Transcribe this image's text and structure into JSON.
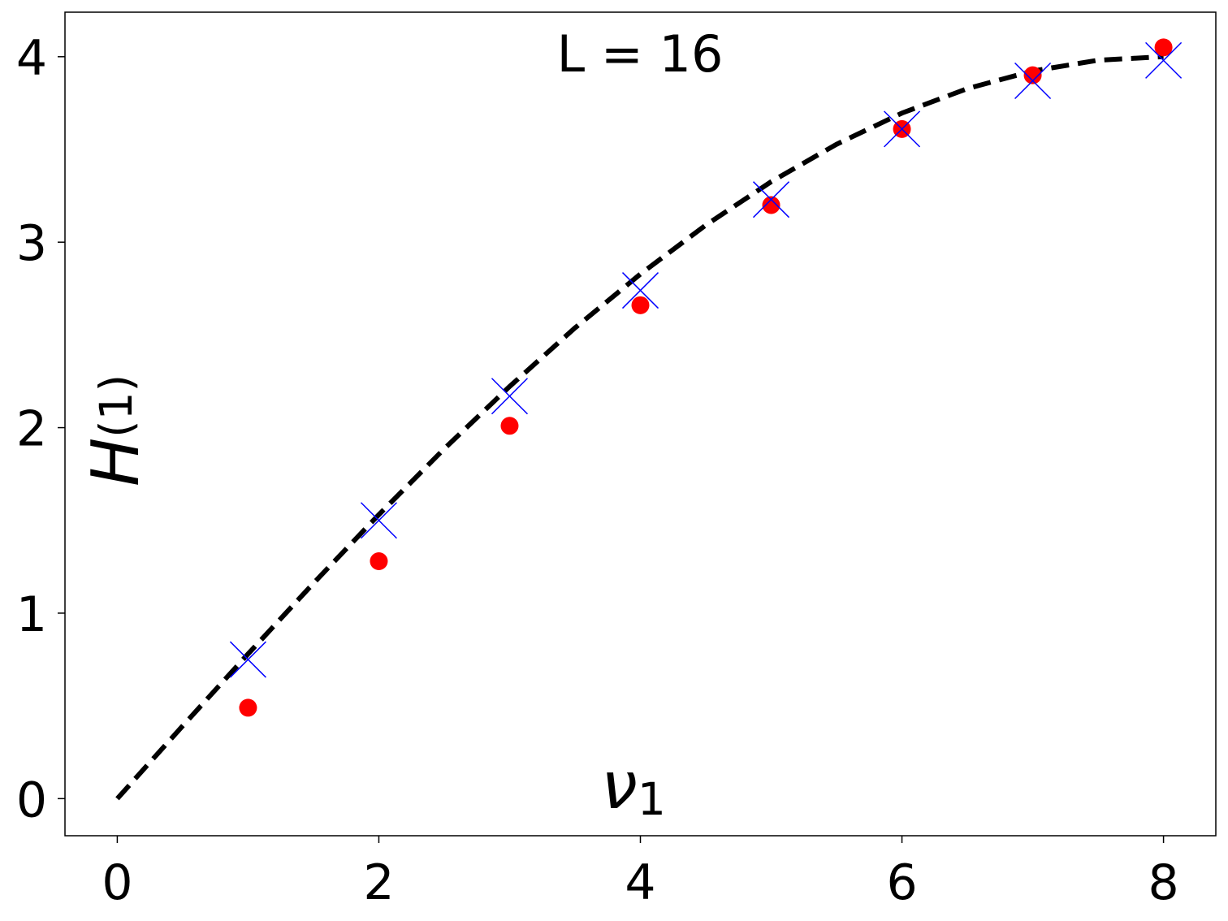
{
  "chart_data": {
    "type": "line",
    "title": "L = 16",
    "xlabel": "ν",
    "xlabel_sub": "1",
    "ylabel": "H",
    "ylabel_sub": "(1)",
    "xlim": [
      -0.4,
      8.4
    ],
    "ylim": [
      -0.2,
      4.24
    ],
    "xticks": [
      0,
      2,
      4,
      6,
      8
    ],
    "yticks": [
      0,
      1,
      2,
      3,
      4
    ],
    "series": [
      {
        "style": "dashed",
        "color": "#000000",
        "x": [
          0,
          0.5,
          1,
          1.5,
          2,
          2.5,
          3,
          3.5,
          4,
          4.5,
          5,
          5.5,
          6,
          6.5,
          7,
          7.5,
          8
        ],
        "values": [
          0,
          0.392,
          0.78,
          1.161,
          1.531,
          1.886,
          2.222,
          2.538,
          2.828,
          3.092,
          3.326,
          3.528,
          3.696,
          3.828,
          3.923,
          3.981,
          4.0
        ]
      },
      {
        "style": "circle",
        "color": "#ff0000",
        "x": [
          1,
          2,
          3,
          4,
          5,
          6,
          7,
          8
        ],
        "values": [
          0.49,
          1.28,
          2.01,
          2.66,
          3.2,
          3.61,
          3.9,
          4.05
        ]
      },
      {
        "style": "cross",
        "color": "#0000ff",
        "x": [
          1,
          2,
          3,
          4,
          5,
          6,
          7,
          8
        ],
        "values": [
          0.75,
          1.5,
          2.17,
          2.74,
          3.23,
          3.61,
          3.87,
          3.98
        ]
      }
    ]
  }
}
